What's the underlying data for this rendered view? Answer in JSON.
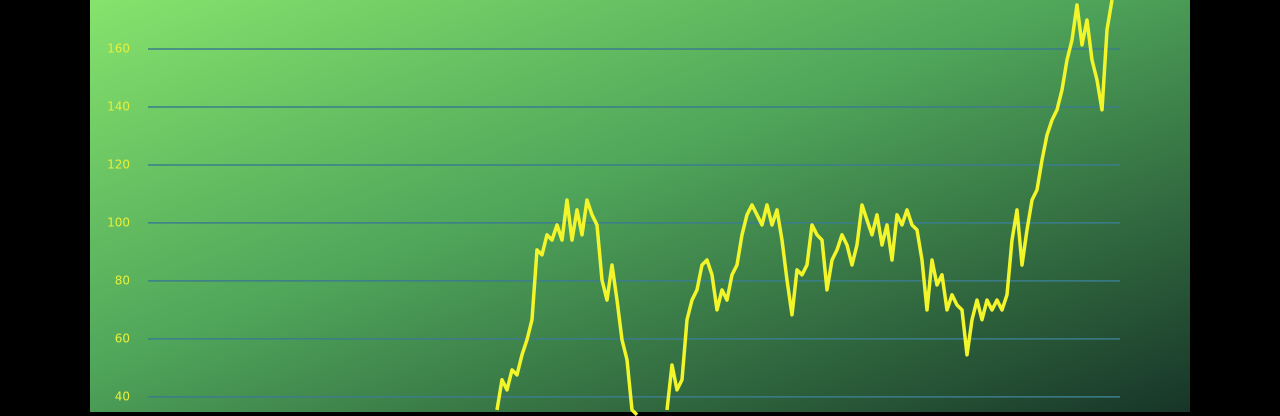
{
  "chart_data": {
    "type": "line",
    "ylim": [
      33.4,
      176.9
    ],
    "yticks": [
      40,
      60,
      80,
      100,
      120,
      140,
      160
    ],
    "grid": true,
    "series": [
      {
        "color": "#f2f52a",
        "values": [
          35.5,
          45.9,
          42.4,
          49.3,
          47.6,
          54.5,
          59.7,
          66.6,
          90.7,
          89,
          95.9,
          94.1,
          99.3,
          94.1,
          107.9,
          94.1,
          104.5,
          95.9,
          107.9,
          102.8,
          99.3,
          80.3,
          73.4,
          85.5,
          73.4,
          59.7,
          52.8,
          35.5,
          33.8,
          null,
          null,
          null,
          null,
          null,
          35.5,
          51,
          42.4,
          45.9,
          66.6,
          73.4,
          76.9,
          85.5,
          87.2,
          82.1,
          70,
          76.9,
          73.4,
          82.1,
          85.5,
          95.9,
          102.8,
          106.2,
          102.8,
          99.3,
          106.2,
          99.3,
          104.5,
          94.1,
          80.3,
          68.3,
          83.8,
          82.1,
          85.5,
          99.3,
          95.9,
          94.1,
          76.9,
          87.2,
          90.7,
          95.9,
          92.4,
          85.5,
          92.4,
          106.2,
          101,
          95.9,
          102.8,
          92.4,
          99.3,
          87.2,
          102.8,
          99.3,
          104.5,
          99.3,
          97.6,
          87.2,
          70,
          87.2,
          78.6,
          82.1,
          70,
          75.2,
          71.7,
          70,
          54.5,
          66.6,
          73.4,
          66.6,
          73.4,
          70,
          73.4,
          70,
          75.2,
          94.1,
          104.5,
          85.5,
          97.6,
          107.9,
          111.4,
          121.7,
          130.3,
          135.5,
          139,
          145.9,
          156.2,
          163.1,
          175.2,
          161.4,
          170,
          156.2,
          149.3,
          139,
          166.6,
          176.9
        ]
      }
    ]
  }
}
